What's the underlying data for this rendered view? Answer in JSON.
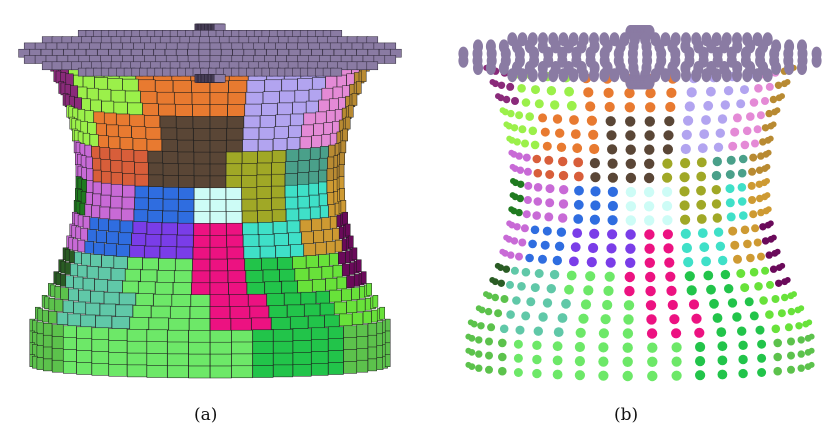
{
  "figure": {
    "panels": [
      {
        "caption": "(a)",
        "style": "voxel-cubes"
      },
      {
        "caption": "(b)",
        "style": "particle-spheres"
      }
    ],
    "top_color": "#8a7ba3",
    "partition_colors": [
      "#e87a30",
      "#5a4636",
      "#d85e3a",
      "#9bf04a",
      "#b2a4f0",
      "#e48ad6",
      "#c8e6ff",
      "#cdfcf6",
      "#2f6de0",
      "#7a3de8",
      "#ec1281",
      "#3fe0c8",
      "#4aa08a",
      "#60c8a8",
      "#22c44a",
      "#6de868",
      "#5cc24c",
      "#68e23a",
      "#1f7a1f",
      "#d8d838",
      "#2a5c24",
      "#c86ad6",
      "#a0a826",
      "#b88a32",
      "#6a0a5a",
      "#8a2a7a",
      "#ce9a32",
      "#2b4db0",
      "#f0f030"
    ]
  }
}
